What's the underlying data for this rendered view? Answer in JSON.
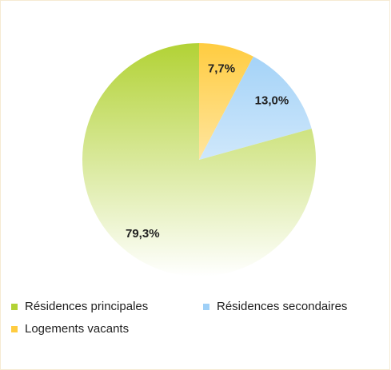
{
  "chart_data": {
    "type": "pie",
    "categories": [
      "Résidences principales",
      "Résidences secondaires",
      "Logements vacants"
    ],
    "values": [
      79.3,
      13.0,
      7.7
    ],
    "value_labels": [
      "79,3%",
      "13,0%",
      "7,7%"
    ],
    "colors": [
      "#b2d235",
      "#9fd0f7",
      "#ffcc40"
    ],
    "legend": "bottom"
  }
}
